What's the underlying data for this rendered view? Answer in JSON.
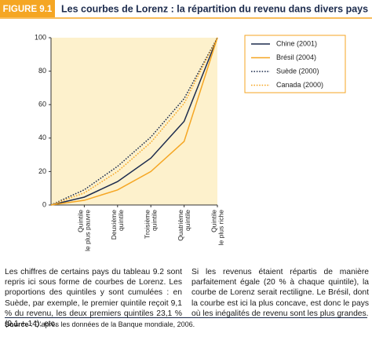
{
  "figure_label": "FIGURE 9.1",
  "chart_data": {
    "type": "line",
    "title": "Les courbes de Lorenz : la répartition du revenu dans divers pays",
    "categories": [
      null,
      [
        "Quintile",
        "le plus pauvre"
      ],
      [
        "Deuxième",
        "quintile"
      ],
      [
        "Troisième",
        "quintile"
      ],
      [
        "Quatrième",
        "quintile"
      ],
      [
        "Quintile",
        "le plus riche"
      ]
    ],
    "series": [
      {
        "name": "Chine (2001)",
        "color": "#1c2b4d",
        "style": "solid",
        "values": [
          0,
          4.7,
          14,
          28,
          50,
          100
        ]
      },
      {
        "name": "Brésil (2004)",
        "color": "#f5a623",
        "style": "solid",
        "values": [
          0,
          2.8,
          9,
          20,
          38,
          100
        ]
      },
      {
        "name": "Suède (2000)",
        "color": "#1c2b4d",
        "style": "dotted",
        "values": [
          0,
          9.1,
          23.1,
          40.6,
          63.6,
          100
        ]
      },
      {
        "name": "Canada (2000)",
        "color": "#f5a623",
        "style": "dotted",
        "values": [
          0,
          7.2,
          20,
          37.4,
          60.7,
          100
        ]
      }
    ],
    "ylim": [
      0,
      100
    ],
    "yticks": [
      0,
      20,
      40,
      60,
      80,
      100
    ],
    "legend": "upper-right",
    "background": "#fdf1cc"
  },
  "text": {
    "left": "Les chiffres de certains pays du tableau 9.2 sont repris ici sous forme de courbes de Lorenz. Les proportions des quintiles y sont cumulées : en Suède, par exemple, le premier quintile reçoit 9,1 % du revenu, les deux premiers quintiles 23,1 % (9,1 + 14), etc.",
    "right": "Si les revenus étaient répartis de manière parfaitement égale (20 % à chaque quintile), la courbe de Lorenz serait rectiligne. Le Brésil, dont la courbe est ici la plus concave, est donc le pays où les inégalités de revenu sont les plus grandes."
  },
  "source": {
    "label": "Source",
    "text": " : D’après les données de la Banque mondiale, 2006."
  }
}
